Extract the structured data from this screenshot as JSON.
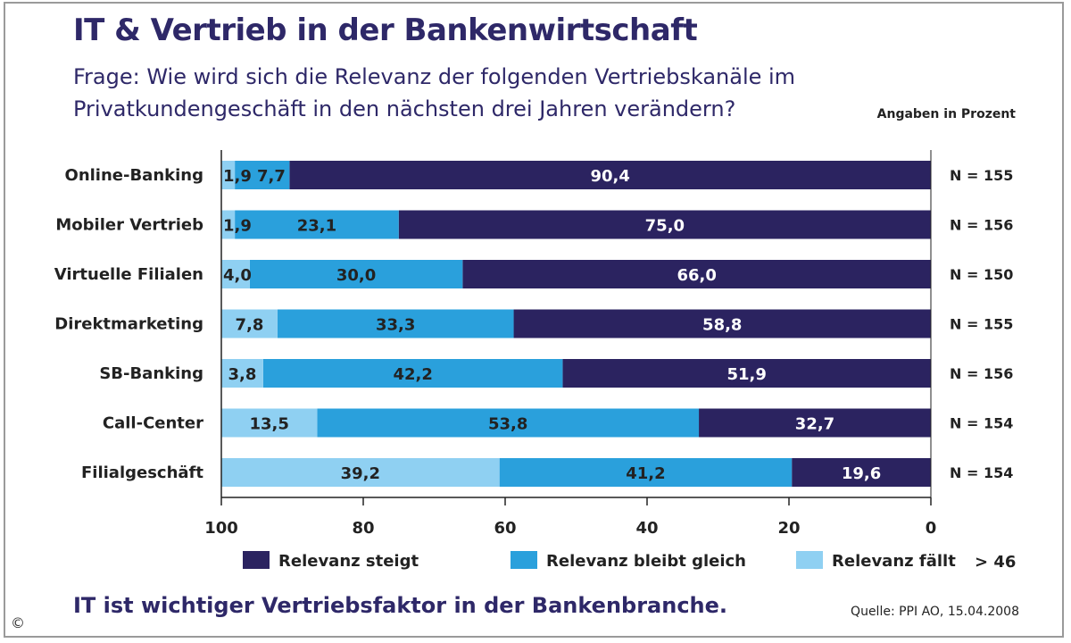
{
  "header": {
    "title": "IT & Vertrieb in der Bankenwirtschaft",
    "question_line1": "Frage: Wie wird sich die Relevanz der folgenden Vertriebskanäle im",
    "question_line2": "Privatkundengeschäft in den nächsten drei Jahren verändern?",
    "unit_note": "Angaben in Prozent"
  },
  "footer": {
    "headline": "IT ist wichtiger Vertriebsfaktor in der Bankenbranche.",
    "source": "Quelle: PPI AO, 15.04.2008",
    "copyright": "©"
  },
  "legend_extra": "> 46",
  "colors": {
    "steigt": "#2b2360",
    "gleich": "#2aa0dc",
    "faellt": "#8fd0f2",
    "text_dark": "#222222",
    "text_light": "#ffffff"
  },
  "chart_data": {
    "type": "bar",
    "orientation": "horizontal-stacked",
    "categories": [
      "Online-Banking",
      "Mobiler Vertrieb",
      "Virtuelle Filialen",
      "Direktmarketing",
      "SB-Banking",
      "Call-Center",
      "Filialgeschäft"
    ],
    "series": [
      {
        "name": "Relevanz steigt",
        "values": [
          90.4,
          75.0,
          66.0,
          58.8,
          51.9,
          32.7,
          19.6
        ],
        "labels": [
          "90,4",
          "75,0",
          "66,0",
          "58,8",
          "51,9",
          "32,7",
          "19,6"
        ]
      },
      {
        "name": "Relevanz bleibt gleich",
        "values": [
          7.7,
          23.1,
          30.0,
          33.3,
          42.2,
          53.8,
          41.2
        ],
        "labels": [
          "7,7",
          "23,1",
          "30,0",
          "33,3",
          "42,2",
          "53,8",
          "41,2"
        ]
      },
      {
        "name": "Relevanz fällt",
        "values": [
          1.9,
          1.9,
          4.0,
          7.8,
          3.8,
          13.5,
          39.2
        ],
        "labels": [
          "1,9",
          "1,9",
          "4,0",
          "7,8",
          "3,8",
          "13,5",
          "39,2"
        ]
      }
    ],
    "n_labels": [
      "N = 155",
      "N = 156",
      "N = 150",
      "N = 155",
      "N = 156",
      "N = 154",
      "N = 154"
    ],
    "xaxis": {
      "ticks": [
        100,
        80,
        60,
        40,
        20,
        0
      ],
      "direction": "reversed",
      "range": [
        0,
        100
      ]
    },
    "legend_position": "bottom"
  }
}
